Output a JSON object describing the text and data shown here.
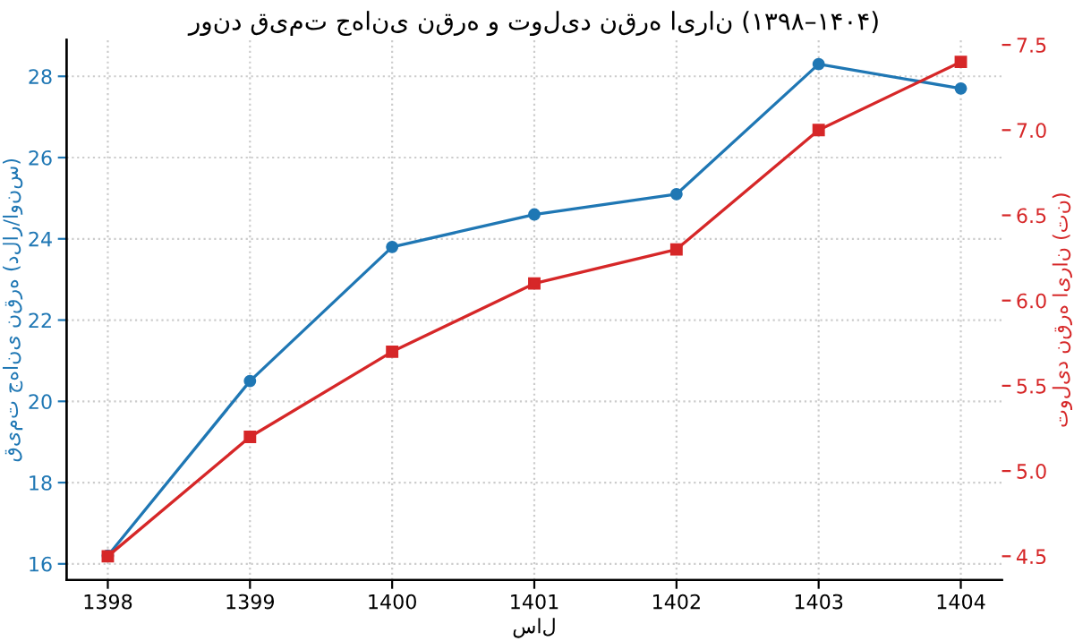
{
  "chart_data": {
    "type": "line",
    "title": "روند قیمت جهانی نقره و تولید نقره ایران (۱۳۹۸–۱۴۰۴)",
    "xlabel": "سال",
    "ylabel": "قیمت جهانی نقره (دلار/اونس)",
    "y2label": "تولید نقره ایران (تن)",
    "x": [
      1398,
      1399,
      1400,
      1401,
      1402,
      1403,
      1404
    ],
    "series": [
      {
        "color": "#1f77b4",
        "marker": "circle",
        "values": [
          16.2,
          20.5,
          23.8,
          24.6,
          25.1,
          28.3,
          27.7
        ]
      },
      {
        "color": "#d62728",
        "marker": "square",
        "axis": "y2",
        "values": [
          4.5,
          5.2,
          5.7,
          6.1,
          6.3,
          7.0,
          7.4
        ]
      }
    ],
    "xlim": [
      1397.71,
      1404.29
    ],
    "xticks": [
      1398,
      1399,
      1400,
      1401,
      1402,
      1403,
      1404
    ],
    "ylim": [
      15.6,
      28.9
    ],
    "yticks": [
      16,
      18,
      20,
      22,
      24,
      26,
      28
    ],
    "y2lim": [
      4.36,
      7.53
    ],
    "y2ticks": [
      4.5,
      {
        "value": 5,
        "label": "5.0"
      },
      5.5,
      {
        "value": 6,
        "label": "6.0"
      },
      6.5,
      {
        "value": 7,
        "label": "7.0"
      },
      7.5
    ],
    "grid": true,
    "line_style": "solid"
  }
}
